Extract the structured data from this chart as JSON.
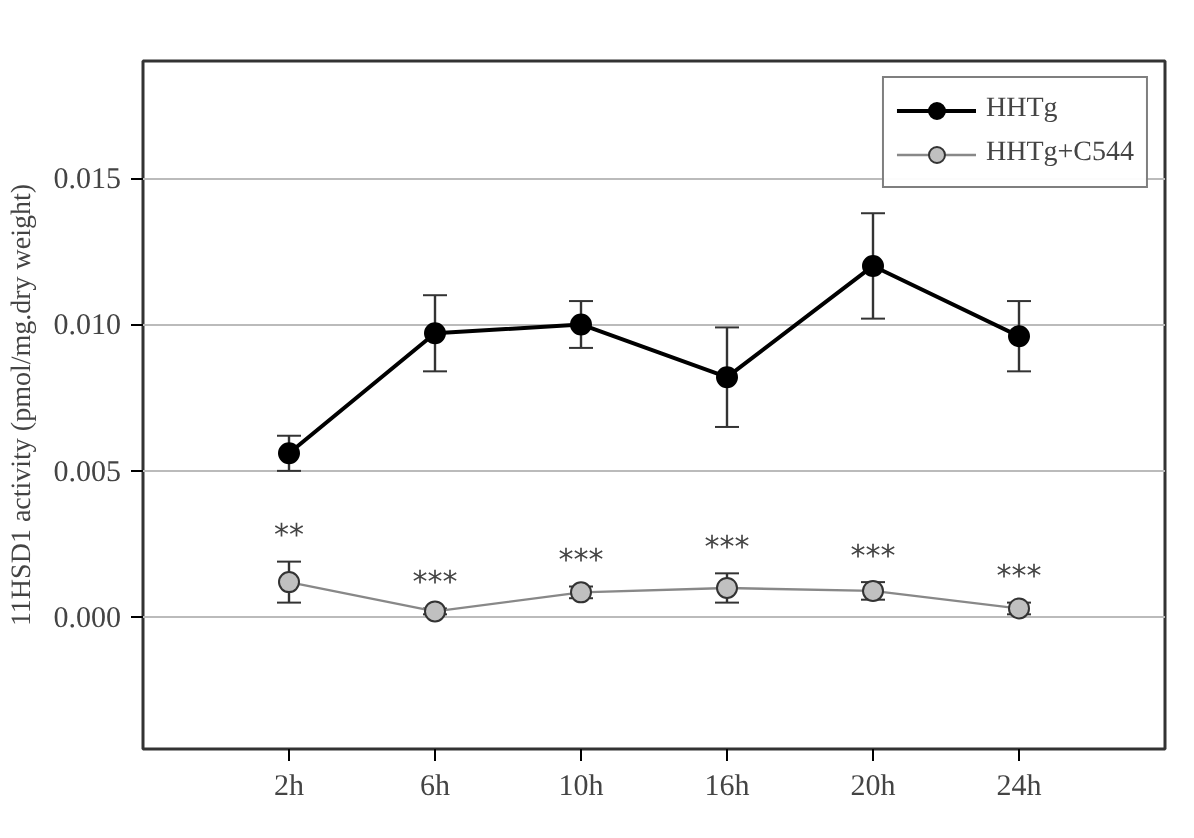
{
  "chart_data": {
    "type": "line",
    "ylabel": "11HSD1 activity (pmol/mg.dry weight)",
    "categories": [
      "2h",
      "6h",
      "10h",
      "16h",
      "20h",
      "24h"
    ],
    "series": [
      {
        "name": "HHTg",
        "color": "#000000",
        "values": [
          0.0056,
          0.0097,
          0.01,
          0.0082,
          0.012,
          0.0096
        ],
        "errors": [
          0.0006,
          0.0013,
          0.0008,
          0.0017,
          0.0018,
          0.0012
        ]
      },
      {
        "name": "HHTg+C544",
        "color": "#c0c0c0",
        "values": [
          0.0012,
          0.0002,
          0.00085,
          0.001,
          0.0009,
          0.0003
        ],
        "errors": [
          0.0007,
          0.0001,
          0.0002,
          0.0005,
          0.0003,
          0.0002
        ]
      }
    ],
    "ylim": [
      -0.0045,
      0.019
    ],
    "yticks": [
      {
        "value": 0,
        "label": "0.000"
      },
      {
        "value": 0.005,
        "label": "0.005"
      },
      {
        "value": 0.01,
        "label": "0.010"
      },
      {
        "value": 0.015,
        "label": "0.015"
      }
    ],
    "annotations": [
      "**",
      "***",
      "***",
      "***",
      "***",
      "***"
    ],
    "grid": "y",
    "legend": "top right",
    "marker": "circle",
    "line_style": "solid"
  }
}
